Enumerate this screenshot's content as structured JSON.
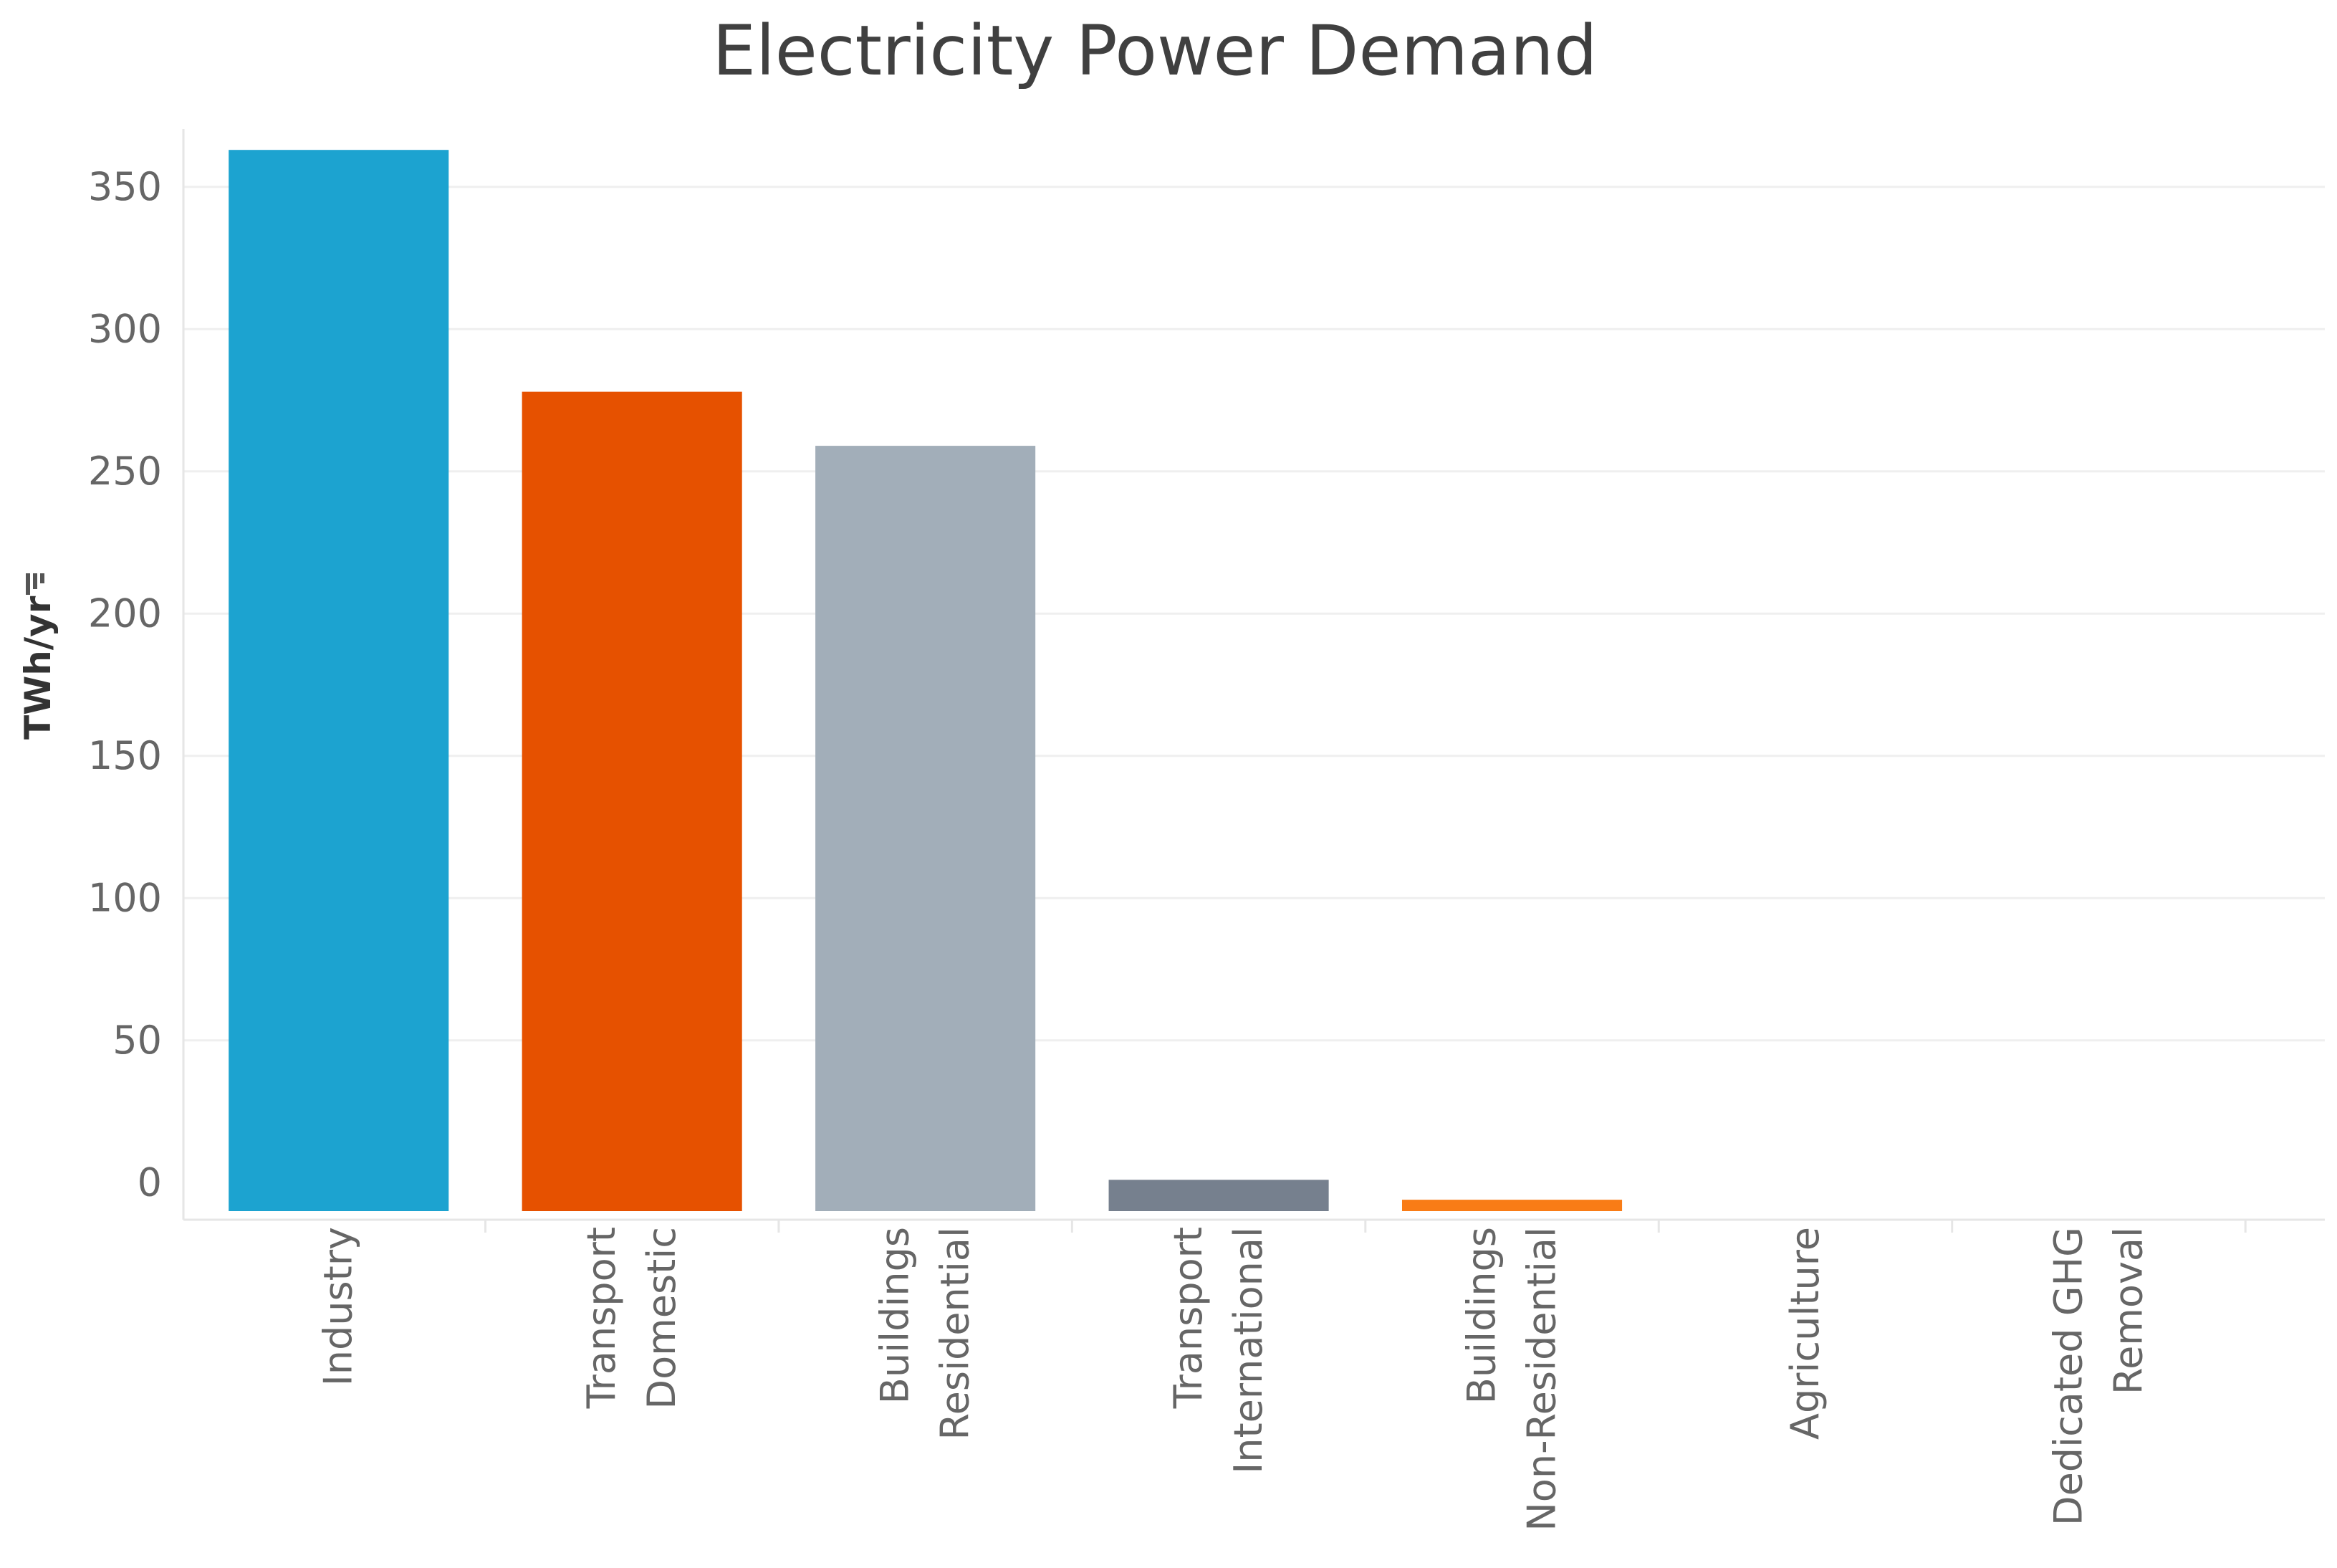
{
  "chart_data": {
    "type": "bar",
    "title": "Electricity Power Demand",
    "ylabel": "TWh/yr",
    "ylabel_icon": "sort-icon",
    "xlabel": "",
    "ylim": [
      -10,
      380
    ],
    "yticks": [
      0,
      50,
      100,
      150,
      200,
      250,
      300,
      350
    ],
    "grid": true,
    "categories": [
      [
        "Industry"
      ],
      [
        "Transport",
        "Domestic"
      ],
      [
        "Buildings",
        "Residential"
      ],
      [
        "Transport",
        "International"
      ],
      [
        "Buildings",
        "Non-Residential"
      ],
      [
        "Agriculture"
      ],
      [
        "Dedicated GHG",
        "Removal"
      ]
    ],
    "values": [
      363,
      278,
      259,
      1,
      -6,
      -10,
      -10
    ],
    "colors": [
      "#1ca3d0",
      "#e65100",
      "#a2aeb9",
      "#76808e",
      "#f97c16",
      "#cccccc",
      "#cccccc"
    ]
  }
}
